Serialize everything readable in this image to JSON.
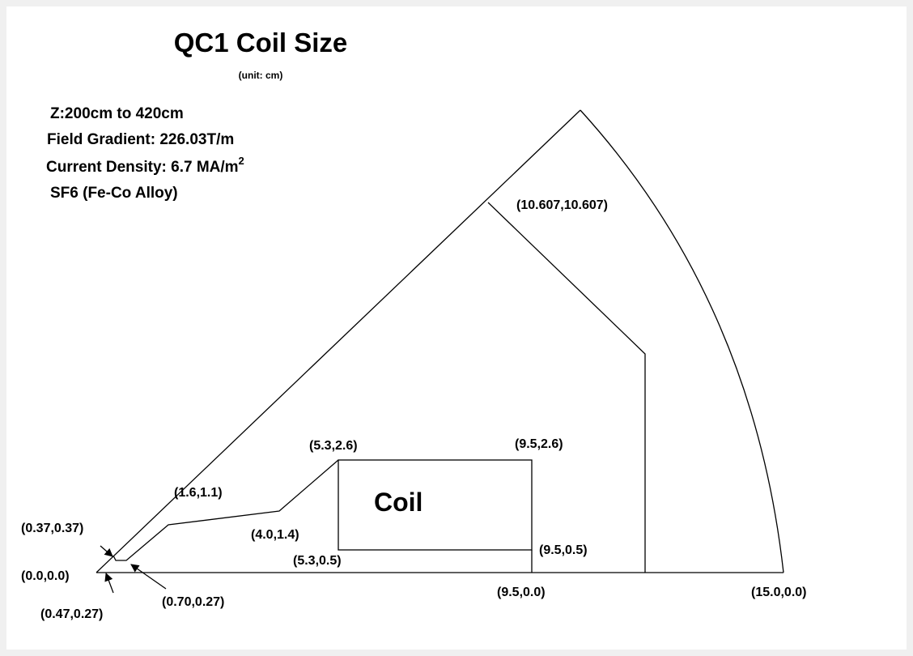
{
  "title": "QC1 Coil Size",
  "subtitle": "(unit: cm)",
  "notes": [
    {
      "text": "Z:200cm to 420cm"
    },
    {
      "text": "Field Gradient: 226.03T/m"
    },
    {
      "text": "Current Density: 6.7 MA/m",
      "sup": "2"
    },
    {
      "text": "SF6 (Fe-Co Alloy)"
    }
  ],
  "coil_label": "Coil",
  "points": [
    "(10.607,10.607)",
    "(5.3,2.6)",
    "(9.5,2.6)",
    "(1.6,1.1)",
    "(4.0,1.4)",
    "(0.37,0.37)",
    "(9.5,0.5)",
    "(5.3,0.5)",
    "(0.0,0.0)",
    "(0.70,0.27)",
    "(9.5,0.0)",
    "(15.0,0.0)",
    "(0.47,0.27)"
  ]
}
